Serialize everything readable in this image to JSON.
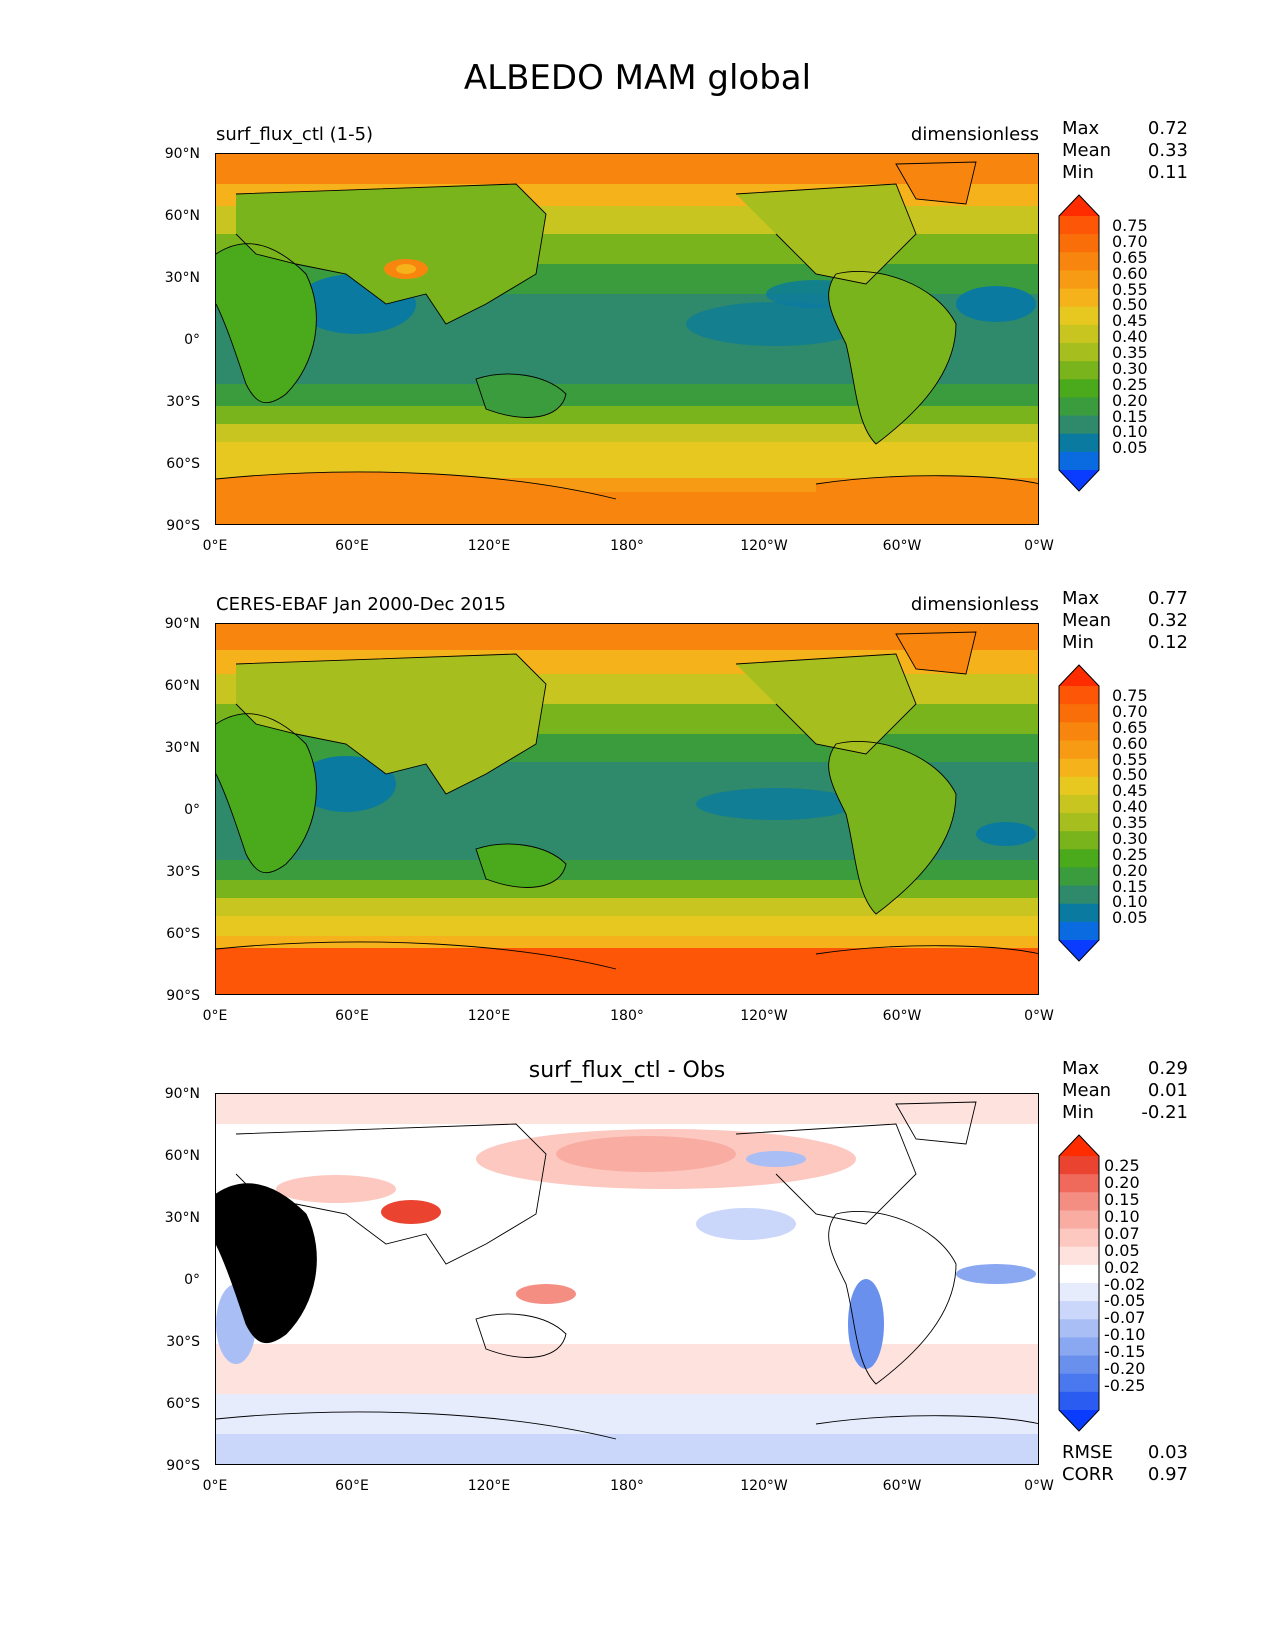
{
  "title": "ALBEDO MAM global",
  "x_ticks": [
    "0°E",
    "60°E",
    "120°E",
    "180°",
    "120°W",
    "60°W",
    "0°W"
  ],
  "y_ticks": [
    "90°N",
    "60°N",
    "30°N",
    "0°",
    "30°S",
    "60°S",
    "90°S"
  ],
  "colors": {
    "scale_abs": [
      "#0a3cff",
      "#0a6be0",
      "#0a7aa0",
      "#2e8a6a",
      "#3a9c3c",
      "#4aaa1c",
      "#7ab41c",
      "#a6be1e",
      "#c8c420",
      "#e6c820",
      "#f5b21a",
      "#f79a14",
      "#f8860e",
      "#fa6e0a",
      "#fc5606",
      "#ff2c00"
    ],
    "scale_diff": [
      "#0a3cff",
      "#2a5cf2",
      "#4a78ee",
      "#6a90ee",
      "#8aa8f2",
      "#aabef6",
      "#cad6fa",
      "#e6ecfc",
      "#ffffff",
      "#fde2de",
      "#fcc8c0",
      "#f9aca2",
      "#f58e82",
      "#f06a5c",
      "#ea4430",
      "#ff2c00"
    ]
  },
  "panels": [
    {
      "title_left": "surf_flux_ctl (1-5)",
      "title_right": "dimensionless",
      "stats": [
        {
          "label": "Max",
          "value": "0.72"
        },
        {
          "label": "Mean",
          "value": "0.33"
        },
        {
          "label": "Min",
          "value": "0.11"
        }
      ],
      "colorbar": [
        "0.75",
        "0.70",
        "0.65",
        "0.60",
        "0.55",
        "0.50",
        "0.45",
        "0.40",
        "0.35",
        "0.30",
        "0.25",
        "0.20",
        "0.15",
        "0.10",
        "0.05"
      ]
    },
    {
      "title_left": "CERES-EBAF Jan 2000-Dec 2015",
      "title_right": "dimensionless",
      "stats": [
        {
          "label": "Max",
          "value": "0.77"
        },
        {
          "label": "Mean",
          "value": "0.32"
        },
        {
          "label": "Min",
          "value": "0.12"
        }
      ],
      "colorbar": [
        "0.75",
        "0.70",
        "0.65",
        "0.60",
        "0.55",
        "0.50",
        "0.45",
        "0.40",
        "0.35",
        "0.30",
        "0.25",
        "0.20",
        "0.15",
        "0.10",
        "0.05"
      ]
    },
    {
      "title_center": "surf_flux_ctl - Obs",
      "stats": [
        {
          "label": "Max",
          "value": "0.29"
        },
        {
          "label": "Mean",
          "value": "0.01"
        },
        {
          "label": "Min",
          "value": "-0.21"
        }
      ],
      "colorbar": [
        "0.25",
        "0.20",
        "0.15",
        "0.10",
        "0.07",
        "0.05",
        "0.02",
        "-0.02",
        "-0.05",
        "-0.07",
        "-0.10",
        "-0.15",
        "-0.20",
        "-0.25"
      ],
      "footer_stats": [
        {
          "label": "RMSE",
          "value": "0.03"
        },
        {
          "label": "CORR",
          "value": "0.97"
        }
      ]
    }
  ]
}
